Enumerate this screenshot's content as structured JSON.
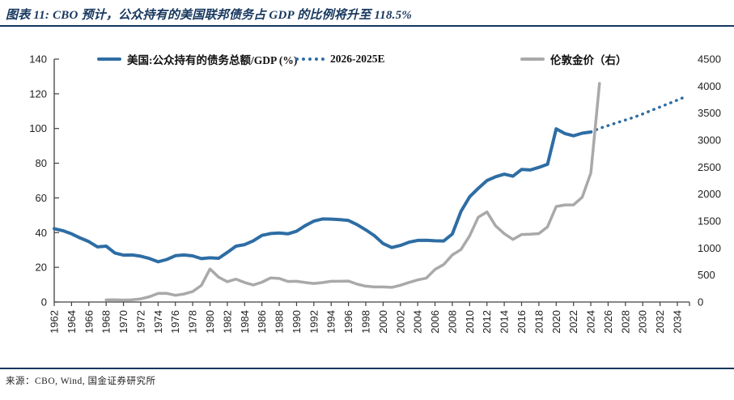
{
  "header": {
    "title": "图表 11: CBO 预计，公众持有的美国联邦债务占 GDP 的比例将升至 118.5%"
  },
  "footer": {
    "source": "来源：CBO, Wind, 国金证券研究所"
  },
  "colors": {
    "navy_rule": "#17375e",
    "debt_blue": "#2e6da4",
    "gold_gray": "#a9a9a9",
    "axis": "#404040",
    "tick_label": "#1f1f1f"
  },
  "chart_data": {
    "type": "line",
    "title": "图表 11: CBO 预计，公众持有的美国联邦债务占 GDP 的比例将升至 118.5%",
    "legend_position": "top",
    "grid": "off",
    "x_axis": {
      "tick_start": 1962,
      "tick_end": 2034,
      "tick_step": 2,
      "data_end": 2035
    },
    "y_left_axis": {
      "min": 0,
      "max": 140,
      "step": 20
    },
    "y_right_axis": {
      "min": 0,
      "max": 4500,
      "step": 500
    },
    "series": [
      {
        "id": "us-debt-to-gdp",
        "name": "美国:公众持有的债务总额/GDP (%)",
        "axis": "left",
        "style": "solid",
        "color": "#2e6da4",
        "width": 4,
        "start_year": 1962,
        "values": [
          42.3,
          41.1,
          39.3,
          36.9,
          34.8,
          31.8,
          32.2,
          28.3,
          27.0,
          27.1,
          26.4,
          25.1,
          23.2,
          24.5,
          26.7,
          27.1,
          26.6,
          25.0,
          25.5,
          25.2,
          28.6,
          32.2,
          33.1,
          35.3,
          38.4,
          39.5,
          39.8,
          39.3,
          40.8,
          44.0,
          46.6,
          47.9,
          47.8,
          47.5,
          47.0,
          44.6,
          41.6,
          38.2,
          33.7,
          31.4,
          32.6,
          34.5,
          35.5,
          35.6,
          35.3,
          35.2,
          39.2,
          52.2,
          60.6,
          65.5,
          70.0,
          72.2,
          73.7,
          72.5,
          76.4,
          76.1,
          77.6,
          79.4,
          99.8,
          97.1,
          95.8,
          97.3,
          98.0
        ]
      },
      {
        "id": "us-debt-projection",
        "name": "2026-2025E",
        "axis": "left",
        "style": "dotted",
        "color": "#2e6da4",
        "width": 3.5,
        "start_year": 2024,
        "values": [
          98.0,
          100.1,
          101.7,
          103.3,
          104.9,
          106.5,
          108.4,
          110.4,
          112.4,
          114.4,
          116.4,
          118.5
        ]
      },
      {
        "id": "london-gold-price",
        "name": "伦敦金价（右）",
        "axis": "right",
        "style": "solid",
        "color": "#a9a9a9",
        "width": 3.5,
        "start_year": 1968,
        "values": [
          39,
          41,
          36,
          41,
          58,
          97,
          159,
          161,
          125,
          148,
          193,
          307,
          612,
          460,
          376,
          424,
          361,
          317,
          368,
          447,
          437,
          381,
          384,
          362,
          344,
          360,
          384,
          384,
          388,
          331,
          294,
          279,
          279,
          271,
          310,
          363,
          410,
          444,
          604,
          695,
          872,
          972,
          1225,
          1572,
          1669,
          1411,
          1266,
          1160,
          1251,
          1257,
          1268,
          1393,
          1770,
          1799,
          1800,
          1941,
          2390,
          4050
        ]
      }
    ]
  }
}
